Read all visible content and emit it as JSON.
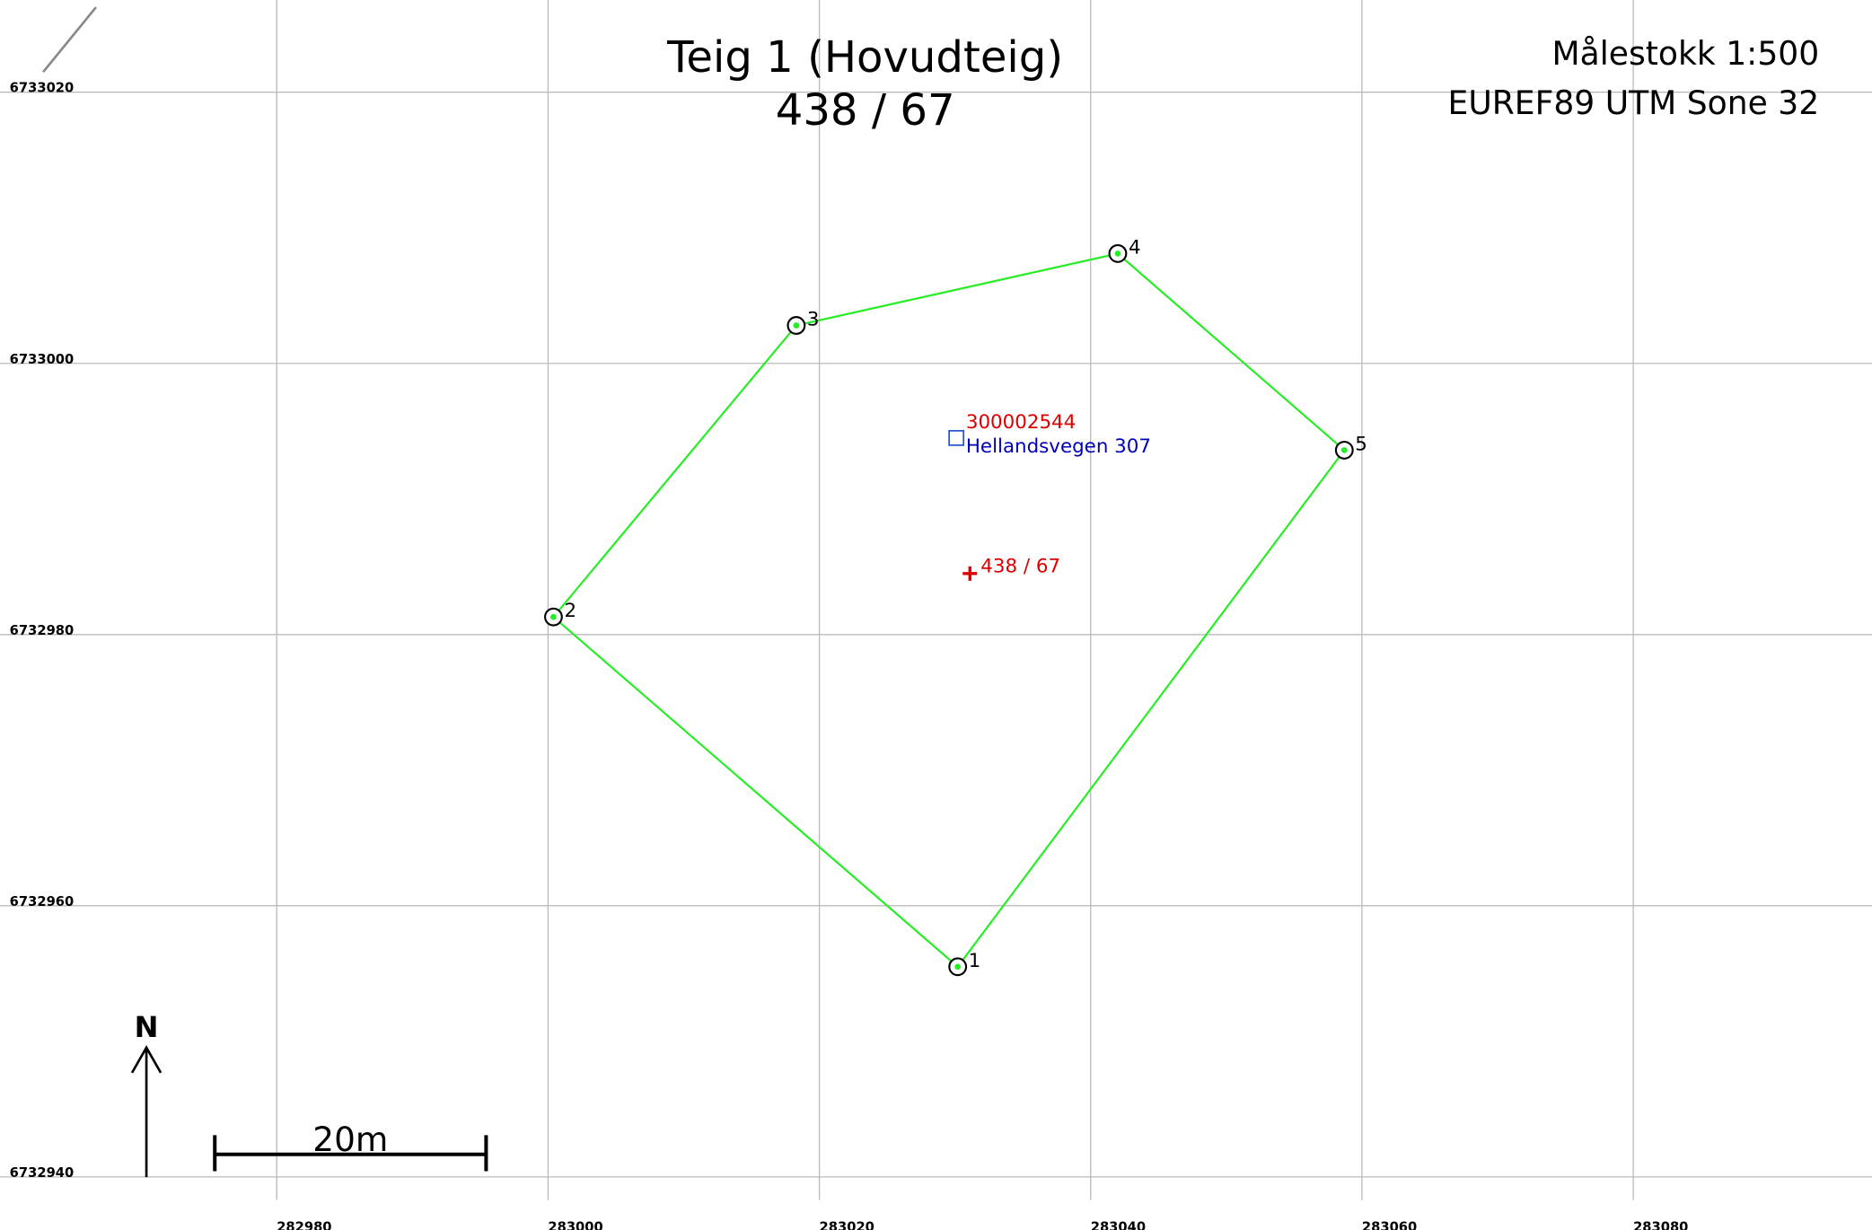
{
  "map": {
    "title": "Teig 1 (Hovudteig)",
    "subtitle": "438 / 67",
    "scale_text": "Målestokk 1:500",
    "crs_text": "EUREF89 UTM Sone 32",
    "north_label": "N",
    "xlim": [
      282959.6,
      283097.6
    ],
    "ylim": [
      6732938.3,
      6733026.8
    ],
    "xticks": [
      282980,
      283000,
      283020,
      283040,
      283060,
      283080
    ],
    "yticks": [
      6733020,
      6733000,
      6732980,
      6732960,
      6732940
    ],
    "boundary_color": "#22ee22",
    "points": [
      {
        "label": "1",
        "e": 283030.2,
        "n": 6732955.5
      },
      {
        "label": "2",
        "e": 283000.4,
        "n": 6732981.3
      },
      {
        "label": "3",
        "e": 283018.3,
        "n": 6733002.8
      },
      {
        "label": "4",
        "e": 283042.0,
        "n": 6733008.1
      },
      {
        "label": "5",
        "e": 283058.7,
        "n": 6732993.6
      }
    ],
    "building": {
      "id": "300002544",
      "address": "Hellandsvegen 307",
      "e": 283030.1,
      "n": 6732994.5
    },
    "parcel_marker": {
      "label": "438 / 67",
      "e": 283031.1,
      "n": 6732984.5
    },
    "scale_bar": {
      "length": 20,
      "label": "20m"
    }
  }
}
